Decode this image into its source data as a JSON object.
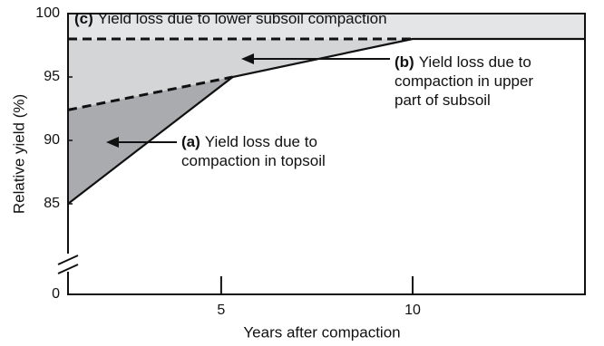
{
  "chart_data": {
    "type": "line",
    "x_label": "Years after compaction",
    "y_label": "Relative yield (%)",
    "xlim": [
      1,
      14.5
    ],
    "xticks": [
      5,
      10
    ],
    "ylim": [
      0,
      100
    ],
    "yticks": [
      0,
      85,
      90,
      95,
      100
    ],
    "axis_break": [
      0,
      83.5
    ],
    "series": [
      {
        "style": "solid",
        "color": "#111111",
        "x": [
          1,
          5.3,
          10,
          14.5
        ],
        "values": [
          85,
          95,
          98,
          98
        ]
      },
      {
        "style": "dashed",
        "color": "#111111",
        "x": [
          1,
          10
        ],
        "values": [
          98,
          98
        ]
      },
      {
        "style": "dashed",
        "color": "#111111",
        "x": [
          1,
          5.3
        ],
        "values": [
          92.4,
          95
        ]
      }
    ],
    "area_colors": {
      "a": "#a9abae",
      "b": "#d4d5d7",
      "c": "#e4e5e6"
    },
    "annotations": [
      {
        "label": "(c)",
        "lines": [
          "Yield loss due to lower subsoil compaction"
        ]
      },
      {
        "label": "(b)",
        "lines": [
          "Yield loss due to",
          "compaction in upper",
          "part of subsoil"
        ]
      },
      {
        "label": "(a)",
        "lines": [
          "Yield loss due to",
          "compaction in topsoil"
        ]
      }
    ]
  }
}
